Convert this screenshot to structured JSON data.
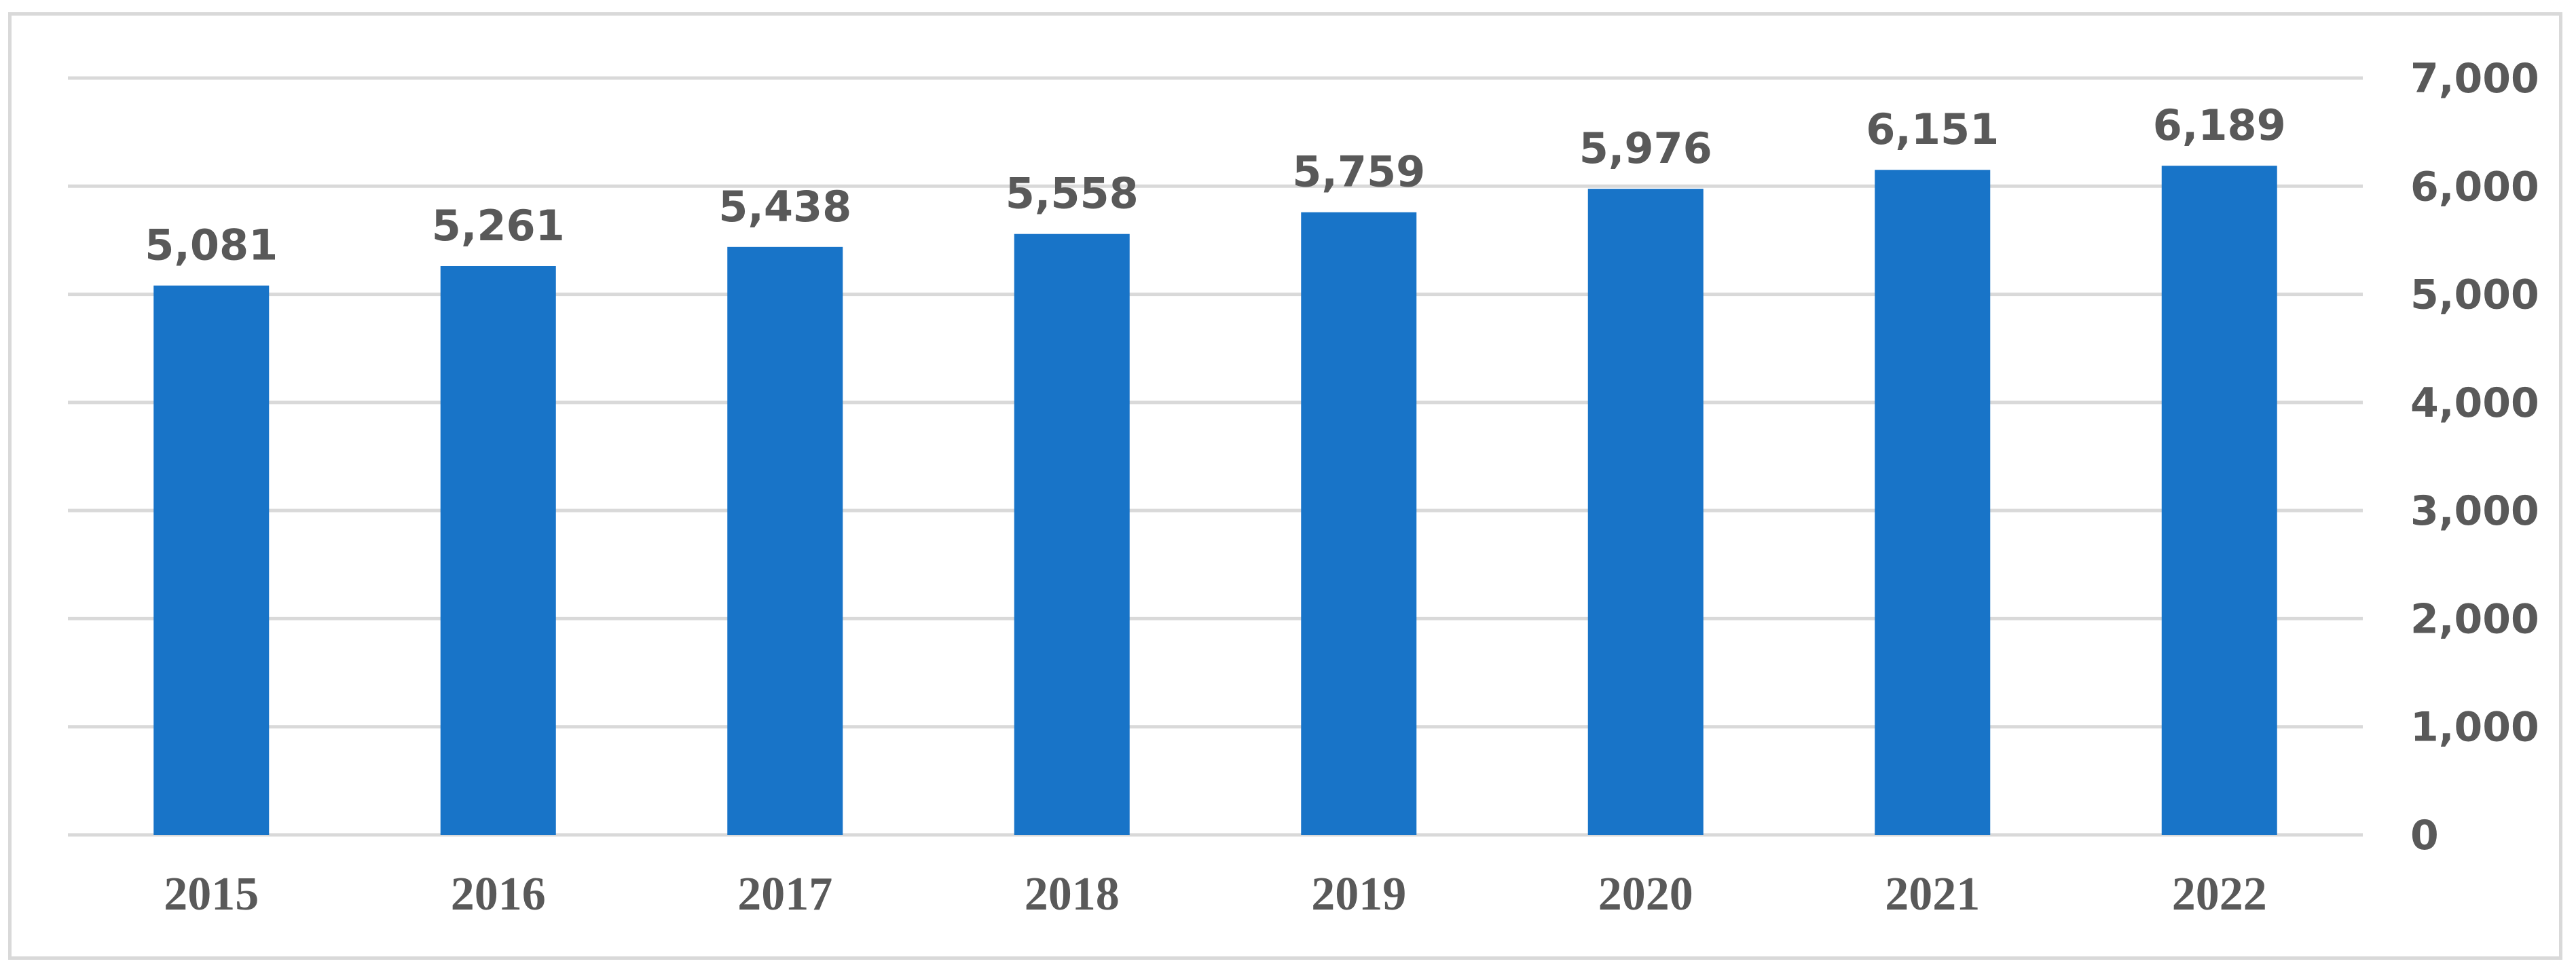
{
  "chart_data": {
    "type": "bar",
    "categories": [
      "2015",
      "2016",
      "2017",
      "2018",
      "2019",
      "2020",
      "2021",
      "2022"
    ],
    "values": [
      5081,
      5261,
      5438,
      5558,
      5759,
      5976,
      6151,
      6189
    ],
    "data_labels": [
      "5,081",
      "5,261",
      "5,438",
      "5,558",
      "5,759",
      "5,976",
      "6,151",
      "6,189"
    ],
    "y_ticks": [
      "0",
      "1,000",
      "2,000",
      "3,000",
      "4,000",
      "5,000",
      "6,000",
      "7,000"
    ],
    "ylim": [
      0,
      7000
    ],
    "y_axis_side": "right",
    "grid": true,
    "legend": false,
    "title": "",
    "xlabel": "",
    "ylabel": "",
    "colors": {
      "bar": "#1874c8",
      "grid": "#d9d9d9",
      "text": "#595959",
      "frame": "#d9d9d9"
    }
  }
}
